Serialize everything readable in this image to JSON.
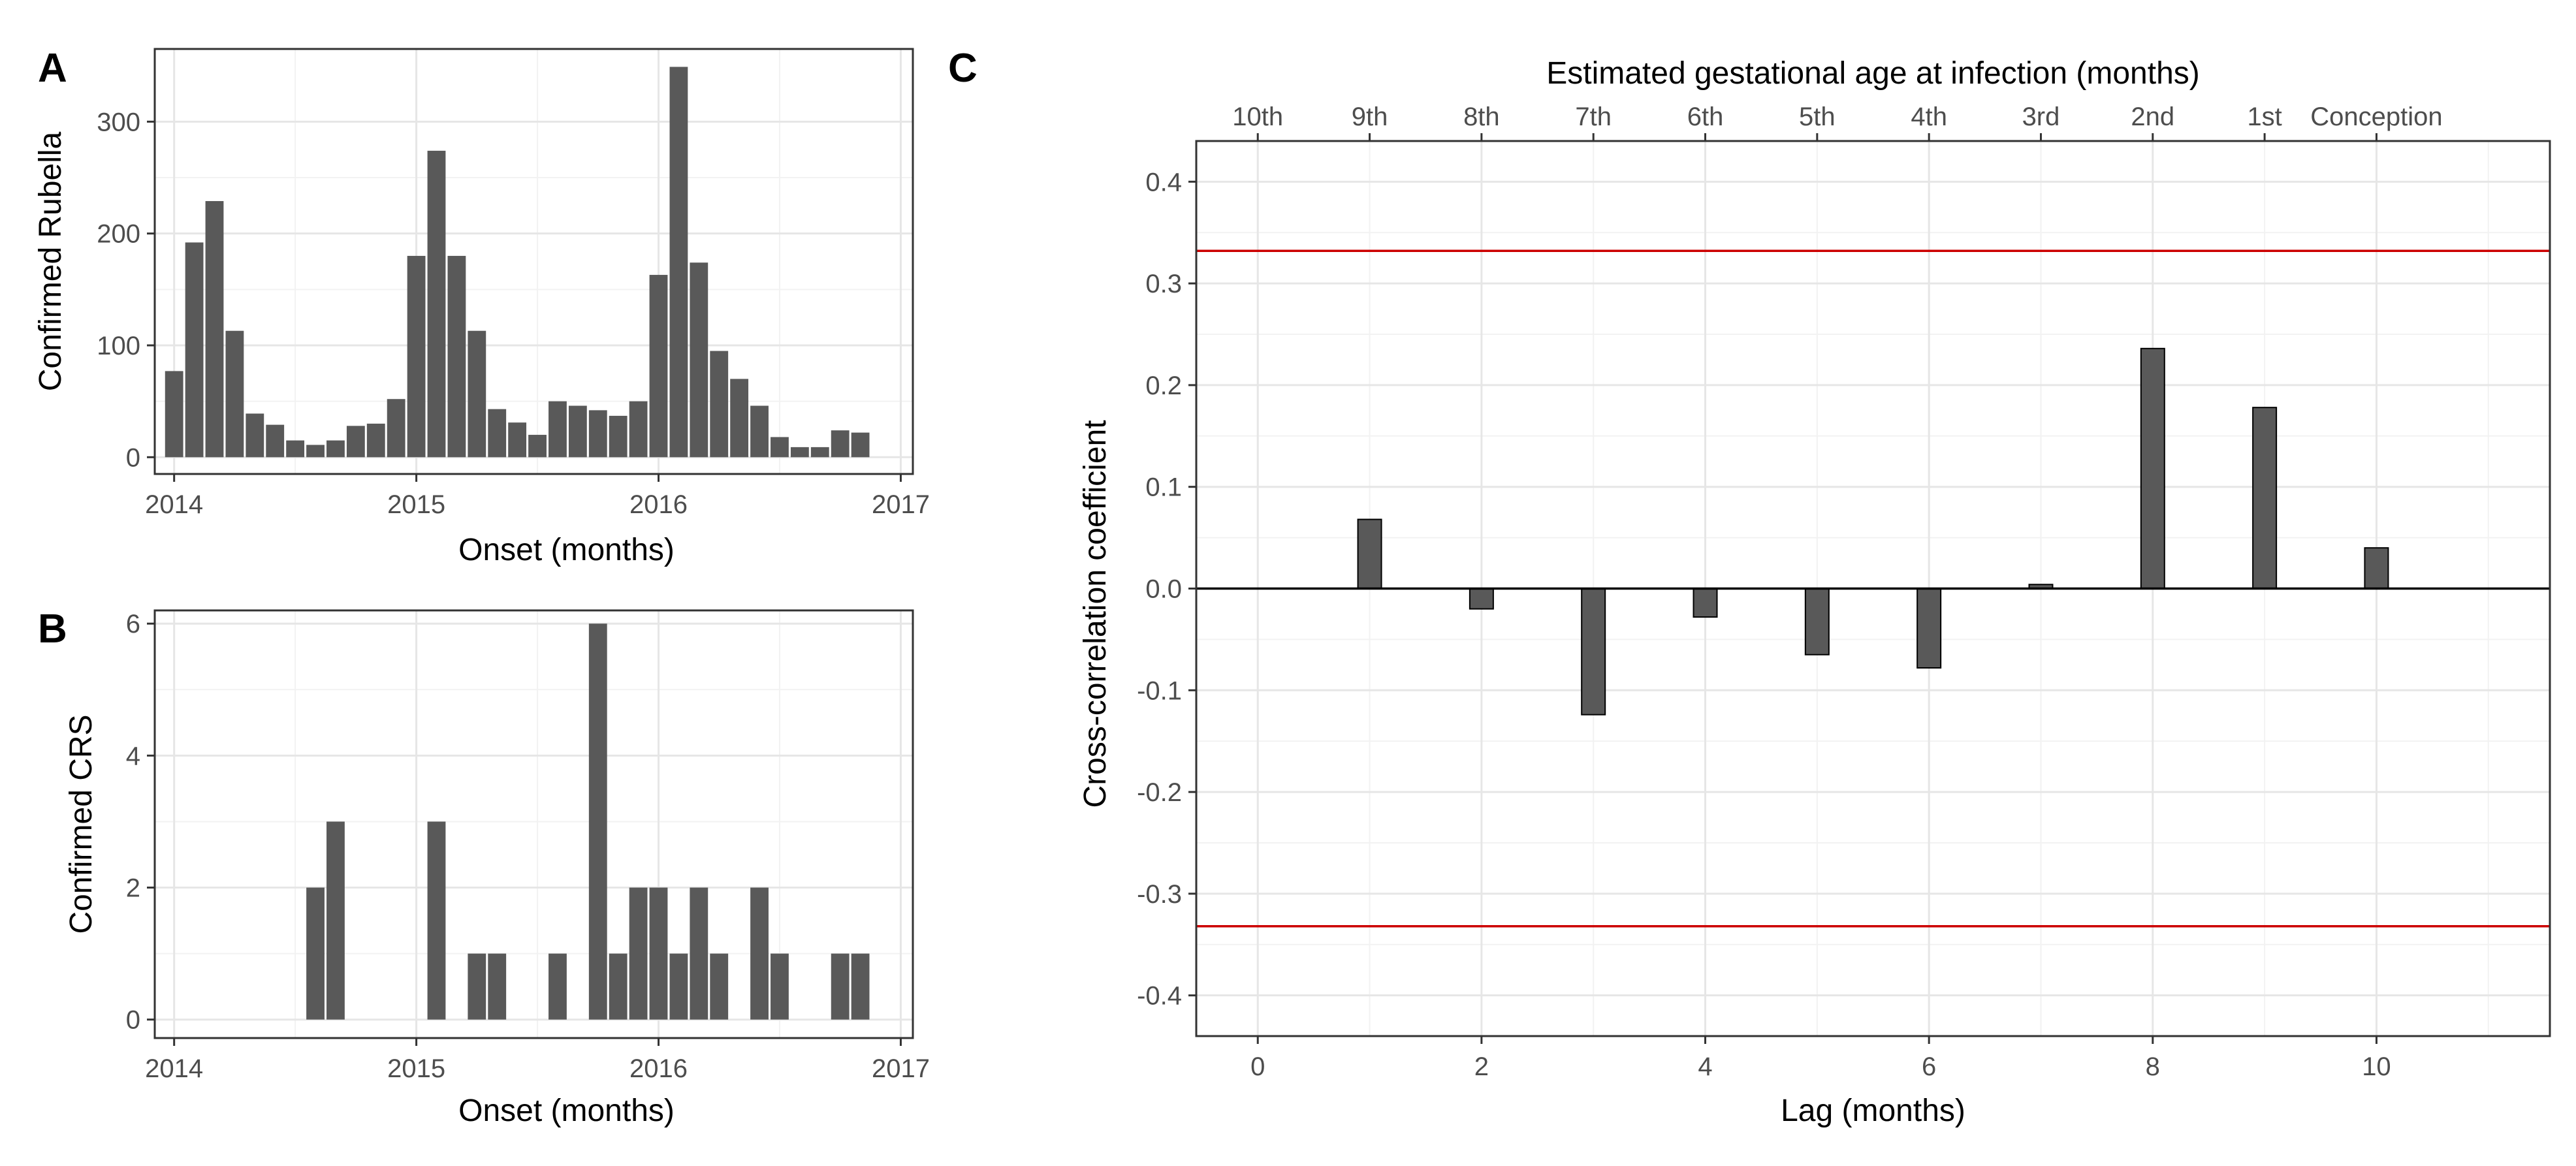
{
  "chart_data": [
    {
      "panel": "A",
      "type": "bar",
      "ylabel": "Confirmed Rubella",
      "xlabel": "Onset (months)",
      "xlim": [
        2013.92,
        2017.05
      ],
      "ylim": [
        -15,
        365
      ],
      "xticks": [
        "2014",
        "2015",
        "2016",
        "2017"
      ],
      "yticks": [
        "0",
        "100",
        "200",
        "300"
      ],
      "bar_color": "#595959",
      "x_start": 2014,
      "x_step": 0.08333,
      "values": [
        77,
        192,
        229,
        113,
        39,
        29,
        15,
        11,
        15,
        28,
        30,
        52,
        180,
        274,
        180,
        113,
        43,
        31,
        20,
        50,
        46,
        42,
        37,
        50,
        163,
        349,
        174,
        95,
        70,
        46,
        18,
        9,
        9,
        24,
        22
      ]
    },
    {
      "panel": "B",
      "type": "bar",
      "ylabel": "Confirmed CRS",
      "xlabel": "Onset (months)",
      "xlim": [
        2013.92,
        2017.05
      ],
      "ylim": [
        -0.28,
        6.2
      ],
      "xticks": [
        "2014",
        "2015",
        "2016",
        "2017"
      ],
      "yticks": [
        "0",
        "2",
        "4",
        "6"
      ],
      "bar_color": "#595959",
      "x_start": 2014,
      "x_step": 0.08333,
      "values": [
        0,
        0,
        0,
        0,
        0,
        0,
        0,
        2,
        3,
        0,
        0,
        0,
        0,
        3,
        0,
        1,
        1,
        0,
        0,
        1,
        0,
        6,
        1,
        2,
        2,
        1,
        2,
        1,
        0,
        2,
        1,
        0,
        0,
        1,
        1
      ]
    },
    {
      "panel": "C",
      "type": "bar",
      "ylabel": "Cross-correlation coefficient",
      "xlabel": "Lag (months)",
      "top_axis_title": "Estimated gestational age at infection (months)",
      "xlim": [
        -0.55,
        11.55
      ],
      "ylim": [
        -0.44,
        0.44
      ],
      "xticks": [
        "0",
        "2",
        "4",
        "6",
        "8",
        "10"
      ],
      "yticks": [
        "-0.4",
        "-0.3",
        "-0.2",
        "-0.1",
        "0.0",
        "0.1",
        "0.2",
        "0.3",
        "0.4"
      ],
      "top_ticks": [
        "10th",
        "9th",
        "8th",
        "7th",
        "6th",
        "5th",
        "4th",
        "3rd",
        "2nd",
        "1st",
        "Conception"
      ],
      "lags": [
        1,
        2,
        3,
        4,
        5,
        6,
        7,
        8,
        9,
        10
      ],
      "values": [
        0.068,
        -0.02,
        -0.124,
        -0.028,
        -0.065,
        -0.078,
        0.004,
        0.236,
        0.178,
        0.04
      ],
      "confidence_limits": [
        0.332,
        -0.332
      ],
      "limit_color": "#cc0000",
      "bar_color": "#595959"
    }
  ]
}
